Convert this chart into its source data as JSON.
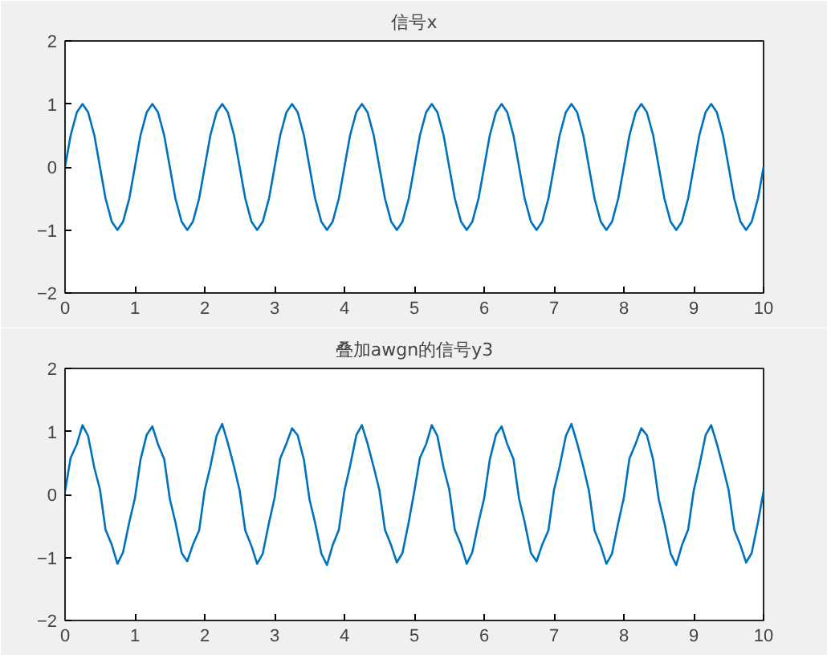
{
  "chart_data": [
    {
      "type": "line",
      "title": "信号x",
      "xlim": [
        0,
        10
      ],
      "xticks": [
        0,
        1,
        2,
        3,
        4,
        5,
        6,
        7,
        8,
        9,
        10
      ],
      "ylim": [
        -2,
        2
      ],
      "yticks": [
        -2,
        -1,
        0,
        1,
        2
      ],
      "grid": false,
      "x": [
        0,
        0.08,
        0.17,
        0.25,
        0.33,
        0.42,
        0.5,
        0.58,
        0.67,
        0.75,
        0.83,
        0.92,
        1,
        1.08,
        1.17,
        1.25,
        1.33,
        1.42,
        1.5,
        1.58,
        1.67,
        1.75,
        1.83,
        1.92,
        2,
        2.08,
        2.17,
        2.25,
        2.33,
        2.42,
        2.5,
        2.58,
        2.67,
        2.75,
        2.83,
        2.92,
        3,
        3.08,
        3.17,
        3.25,
        3.33,
        3.42,
        3.5,
        3.58,
        3.67,
        3.75,
        3.83,
        3.92,
        4,
        4.08,
        4.17,
        4.25,
        4.33,
        4.42,
        4.5,
        4.58,
        4.67,
        4.75,
        4.83,
        4.92,
        5,
        5.08,
        5.17,
        5.25,
        5.33,
        5.42,
        5.5,
        5.58,
        5.67,
        5.75,
        5.83,
        5.92,
        6,
        6.08,
        6.17,
        6.25,
        6.33,
        6.42,
        6.5,
        6.58,
        6.67,
        6.75,
        6.83,
        6.92,
        7,
        7.08,
        7.17,
        7.25,
        7.33,
        7.42,
        7.5,
        7.58,
        7.67,
        7.75,
        7.83,
        7.92,
        8,
        8.08,
        8.17,
        8.25,
        8.33,
        8.42,
        8.5,
        8.58,
        8.67,
        8.75,
        8.83,
        8.92,
        9,
        9.08,
        9.17,
        9.25,
        9.33,
        9.42,
        9.5,
        9.58,
        9.67,
        9.75,
        9.83,
        9.92,
        10
      ],
      "series": [
        {
          "color": "#0072bd",
          "values": [
            0,
            0.5,
            0.87,
            1,
            0.87,
            0.5,
            0,
            -0.5,
            -0.87,
            -1,
            -0.87,
            -0.5,
            0,
            0.5,
            0.87,
            1,
            0.87,
            0.5,
            0,
            -0.5,
            -0.87,
            -1,
            -0.87,
            -0.5,
            0,
            0.5,
            0.87,
            1,
            0.87,
            0.5,
            0,
            -0.5,
            -0.87,
            -1,
            -0.87,
            -0.5,
            0,
            0.5,
            0.87,
            1,
            0.87,
            0.5,
            0,
            -0.5,
            -0.87,
            -1,
            -0.87,
            -0.5,
            0,
            0.5,
            0.87,
            1,
            0.87,
            0.5,
            0,
            -0.5,
            -0.87,
            -1,
            -0.87,
            -0.5,
            0,
            0.5,
            0.87,
            1,
            0.87,
            0.5,
            0,
            -0.5,
            -0.87,
            -1,
            -0.87,
            -0.5,
            0,
            0.5,
            0.87,
            1,
            0.87,
            0.5,
            0,
            -0.5,
            -0.87,
            -1,
            -0.87,
            -0.5,
            0,
            0.5,
            0.87,
            1,
            0.87,
            0.5,
            0,
            -0.5,
            -0.87,
            -1,
            -0.87,
            -0.5,
            0,
            0.5,
            0.87,
            1,
            0.87,
            0.5,
            0,
            -0.5,
            -0.87,
            -1,
            -0.87,
            -0.5,
            0,
            0.5,
            0.87,
            1,
            0.87,
            0.5,
            0,
            -0.5,
            -0.87,
            -1,
            -0.87,
            -0.5,
            0
          ]
        }
      ]
    },
    {
      "type": "line",
      "title": "叠加awgn的信号y3",
      "xlim": [
        0,
        10
      ],
      "xticks": [
        0,
        1,
        2,
        3,
        4,
        5,
        6,
        7,
        8,
        9,
        10
      ],
      "ylim": [
        -2,
        2
      ],
      "yticks": [
        -2,
        -1,
        0,
        1,
        2
      ],
      "grid": false,
      "x": [
        0,
        0.08,
        0.17,
        0.25,
        0.33,
        0.42,
        0.5,
        0.58,
        0.67,
        0.75,
        0.83,
        0.92,
        1,
        1.08,
        1.17,
        1.25,
        1.33,
        1.42,
        1.5,
        1.58,
        1.67,
        1.75,
        1.83,
        1.92,
        2,
        2.08,
        2.17,
        2.25,
        2.33,
        2.42,
        2.5,
        2.58,
        2.67,
        2.75,
        2.83,
        2.92,
        3,
        3.08,
        3.17,
        3.25,
        3.33,
        3.42,
        3.5,
        3.58,
        3.67,
        3.75,
        3.83,
        3.92,
        4,
        4.08,
        4.17,
        4.25,
        4.33,
        4.42,
        4.5,
        4.58,
        4.67,
        4.75,
        4.83,
        4.92,
        5,
        5.08,
        5.17,
        5.25,
        5.33,
        5.42,
        5.5,
        5.58,
        5.67,
        5.75,
        5.83,
        5.92,
        6,
        6.08,
        6.17,
        6.25,
        6.33,
        6.42,
        6.5,
        6.58,
        6.67,
        6.75,
        6.83,
        6.92,
        7,
        7.08,
        7.17,
        7.25,
        7.33,
        7.42,
        7.5,
        7.58,
        7.67,
        7.75,
        7.83,
        7.92,
        8,
        8.08,
        8.17,
        8.25,
        8.33,
        8.42,
        8.5,
        8.58,
        8.67,
        8.75,
        8.83,
        8.92,
        9,
        9.08,
        9.17,
        9.25,
        9.33,
        9.42,
        9.5,
        9.58,
        9.67,
        9.75,
        9.83,
        9.92,
        10
      ],
      "series": [
        {
          "color": "#0072bd",
          "values": [
            0.05,
            0.58,
            0.8,
            1.1,
            0.93,
            0.42,
            0.08,
            -0.56,
            -0.8,
            -1.1,
            -0.92,
            -0.44,
            -0.06,
            0.55,
            0.95,
            1.08,
            0.8,
            0.56,
            -0.07,
            -0.44,
            -0.93,
            -1.06,
            -0.8,
            -0.57,
            0.07,
            0.44,
            0.93,
            1.12,
            0.82,
            0.44,
            0.06,
            -0.57,
            -0.82,
            -1.1,
            -0.94,
            -0.45,
            -0.05,
            0.57,
            0.81,
            1.05,
            0.94,
            0.55,
            -0.08,
            -0.45,
            -0.94,
            -1.12,
            -0.81,
            -0.56,
            0.06,
            0.45,
            0.94,
            1.1,
            0.81,
            0.43,
            0.07,
            -0.56,
            -0.81,
            -1.08,
            -0.93,
            -0.44,
            0.05,
            0.58,
            0.8,
            1.1,
            0.93,
            0.42,
            0.08,
            -0.56,
            -0.8,
            -1.1,
            -0.92,
            -0.44,
            -0.06,
            0.55,
            0.95,
            1.08,
            0.8,
            0.56,
            -0.07,
            -0.44,
            -0.93,
            -1.06,
            -0.8,
            -0.57,
            0.07,
            0.44,
            0.93,
            1.12,
            0.82,
            0.44,
            0.06,
            -0.57,
            -0.82,
            -1.1,
            -0.94,
            -0.45,
            -0.05,
            0.57,
            0.81,
            1.05,
            0.94,
            0.55,
            -0.08,
            -0.45,
            -0.94,
            -1.12,
            -0.81,
            -0.56,
            0.06,
            0.45,
            0.94,
            1.1,
            0.81,
            0.43,
            0.07,
            -0.56,
            -0.81,
            -1.08,
            -0.93,
            -0.44,
            0.05
          ]
        }
      ]
    }
  ]
}
